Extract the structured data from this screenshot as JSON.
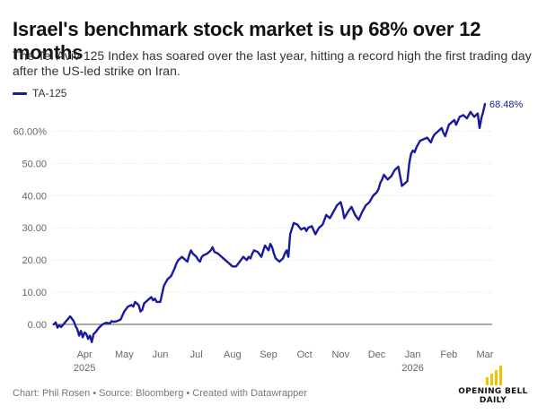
{
  "title": "Israel's benchmark stock market is up 68% over 12 months",
  "subtitle": "The Tel Aviv 125 Index has soared over the last year, hitting a record high the first trading day after the US-led strike on Iran.",
  "footer": "Chart: Phil Rosen • Source: Bloomberg • Created with Datawrapper",
  "logo": {
    "line1": "OPENING BELL",
    "line2": "DAILY"
  },
  "colors": {
    "series": "#1a1a9e",
    "grid": "#dddddd",
    "axis_text": "#666666",
    "logo_bar": "#f2c200"
  },
  "chart_data": {
    "type": "line",
    "title": "Israel's benchmark stock market is up 68% over 12 months",
    "xlabel": "",
    "ylabel": "",
    "ylim": [
      0,
      68.48
    ],
    "ytick_values": [
      0,
      10,
      20,
      30,
      40,
      50,
      60
    ],
    "ytick_labels": [
      "0.00",
      "10.00",
      "20.00",
      "30.00",
      "40.00",
      "50.00",
      "60.00%"
    ],
    "xtick_values": [
      0.9,
      2.0,
      3.0,
      4.0,
      5.0,
      6.0,
      7.0,
      8.0,
      9.0,
      10.0,
      11.0,
      12.0
    ],
    "xtick_labels": [
      "Apr",
      "May",
      "Jun",
      "Jul",
      "Aug",
      "Sep",
      "Oct",
      "Nov",
      "Dec",
      "Jan",
      "Feb",
      "Mar"
    ],
    "xtick_sublabels": [
      "2025",
      "",
      "",
      "",
      "",
      "",
      "",
      "",
      "",
      "2026",
      "",
      ""
    ],
    "x_unit": "months since March 1, 2025",
    "end_label": "68.48%",
    "legend": [
      "TA-125"
    ],
    "series": [
      {
        "name": "TA-125",
        "x": [
          0.05,
          0.1,
          0.15,
          0.2,
          0.25,
          0.35,
          0.45,
          0.5,
          0.6,
          0.65,
          0.7,
          0.75,
          0.8,
          0.85,
          0.9,
          0.95,
          1.0,
          1.05,
          1.1,
          1.15,
          1.2,
          1.3,
          1.4,
          1.5,
          1.6,
          1.65,
          1.7,
          1.8,
          1.9,
          2.0,
          2.1,
          2.2,
          2.25,
          2.3,
          2.35,
          2.4,
          2.45,
          2.5,
          2.55,
          2.6,
          2.7,
          2.75,
          2.8,
          2.85,
          2.9,
          3.0,
          3.1,
          3.2,
          3.3,
          3.4,
          3.45,
          3.5,
          3.6,
          3.7,
          3.75,
          3.8,
          3.85,
          3.9,
          3.95,
          4.0,
          4.05,
          4.1,
          4.15,
          4.2,
          4.3,
          4.35,
          4.4,
          4.45,
          4.5,
          4.6,
          4.7,
          4.8,
          4.9,
          5.0,
          5.1,
          5.2,
          5.3,
          5.4,
          5.45,
          5.5,
          5.55,
          5.6,
          5.7,
          5.8,
          5.9,
          6.0,
          6.05,
          6.1,
          6.15,
          6.2,
          6.3,
          6.4,
          6.45,
          6.5,
          6.55,
          6.6,
          6.7,
          6.8,
          6.9,
          7.0,
          7.05,
          7.1,
          7.2,
          7.3,
          7.35,
          7.4,
          7.5,
          7.6,
          7.7,
          7.8,
          7.9,
          8.0,
          8.05,
          8.1,
          8.2,
          8.3,
          8.4,
          8.5,
          8.6,
          8.7,
          8.8,
          8.9,
          9.0,
          9.05,
          9.1,
          9.15,
          9.2,
          9.3,
          9.4,
          9.5,
          9.55,
          9.6,
          9.7,
          9.8,
          9.85,
          9.9,
          9.95,
          10.0,
          10.05,
          10.1,
          10.2,
          10.3,
          10.4,
          10.5,
          10.55,
          10.6,
          10.7,
          10.8,
          10.85,
          10.9,
          11.0,
          11.1,
          11.15,
          11.2,
          11.3,
          11.4,
          11.5,
          11.55,
          11.6,
          11.7,
          11.8,
          11.85,
          11.9,
          11.95,
          12.0
        ],
        "values": [
          0.0,
          0.6,
          -1.0,
          -0.3,
          -0.8,
          0.5,
          1.8,
          2.5,
          1.0,
          -0.5,
          -1.5,
          -3.5,
          -2.0,
          -4.0,
          -2.5,
          -3.0,
          -4.5,
          -3.5,
          -5.5,
          -3.0,
          -2.5,
          -1.0,
          0.0,
          0.5,
          0.3,
          1.0,
          0.8,
          1.0,
          1.5,
          4.0,
          5.5,
          6.0,
          5.5,
          7.0,
          6.5,
          6.0,
          4.0,
          4.5,
          6.5,
          7.0,
          8.0,
          8.5,
          7.5,
          8.0,
          7.0,
          7.0,
          12.0,
          14.0,
          15.0,
          17.5,
          19.0,
          20.0,
          21.0,
          20.0,
          19.5,
          21.5,
          23.0,
          22.0,
          21.5,
          21.0,
          20.0,
          19.5,
          21.0,
          21.5,
          22.0,
          22.5,
          23.0,
          24.0,
          22.5,
          22.0,
          21.0,
          20.0,
          19.0,
          18.0,
          18.0,
          19.5,
          21.0,
          20.0,
          21.0,
          20.5,
          22.0,
          23.0,
          22.5,
          21.0,
          24.5,
          23.0,
          25.0,
          24.0,
          22.0,
          20.5,
          19.5,
          20.5,
          22.0,
          23.0,
          21.0,
          28.0,
          31.5,
          31.0,
          29.5,
          30.0,
          29.0,
          30.0,
          30.5,
          28.0,
          29.0,
          30.0,
          31.0,
          34.0,
          33.0,
          35.0,
          37.0,
          38.0,
          36.0,
          33.0,
          35.0,
          36.5,
          34.0,
          32.5,
          35.0,
          37.0,
          38.0,
          40.0,
          41.0,
          42.0,
          44.0,
          45.0,
          46.5,
          45.0,
          46.0,
          48.0,
          48.5,
          49.0,
          43.0,
          44.0,
          44.5,
          50.0,
          53.0,
          54.0,
          53.5,
          55.0,
          57.0,
          57.5,
          58.0,
          56.5,
          58.0,
          59.0,
          60.0,
          61.0,
          59.5,
          58.5,
          62.0,
          63.0,
          63.5,
          62.0,
          64.5,
          65.0,
          64.0,
          65.0,
          66.0,
          64.5,
          65.5,
          61.0,
          64.0,
          66.0,
          68.48
        ]
      }
    ]
  }
}
